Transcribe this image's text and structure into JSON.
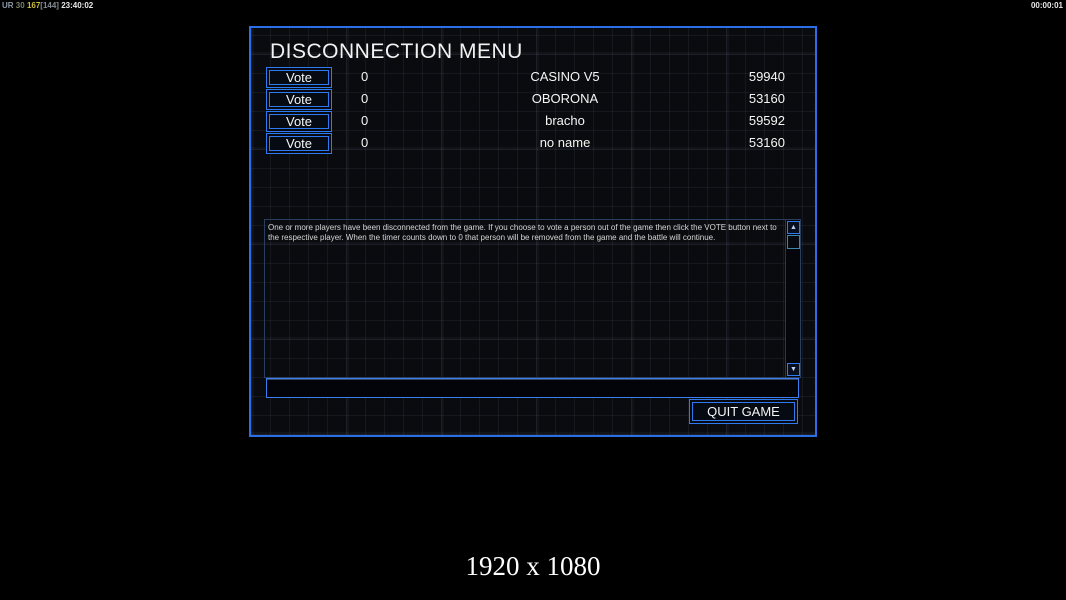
{
  "hud": {
    "top_left": {
      "label_ur": "UR",
      "fps": "30",
      "ping": "167",
      "bracket": "[144]",
      "clock": "23:40:02"
    },
    "top_right_timer": "00:00:01"
  },
  "dialog": {
    "title": "DISCONNECTION MENU",
    "players": [
      {
        "vote_label": "Vote",
        "votes": "0",
        "name": "CASINO V5",
        "score": "59940"
      },
      {
        "vote_label": "Vote",
        "votes": "0",
        "name": "OBORONA",
        "score": "53160"
      },
      {
        "vote_label": "Vote",
        "votes": "0",
        "name": "bracho",
        "score": "59592"
      },
      {
        "vote_label": "Vote",
        "votes": "0",
        "name": "no name",
        "score": "53160"
      }
    ],
    "message": "One or more players have been disconnected from the game.  If you choose to vote a person out of the game then click the VOTE button next to the respective player.  When the timer counts down to 0 that person will be removed from the game and the battle will continue.",
    "chat_input_value": "",
    "quit_button_label": "QUIT GAME",
    "scrollbar": {
      "up_icon": "▲",
      "down_icon": "▼"
    }
  },
  "footer": {
    "resolution": "1920 x 1080"
  },
  "colors": {
    "accent_blue": "#2e7af0",
    "dialog_border": "#2a6ee8",
    "scroll_teal": "#3e86ac",
    "ping_yellow": "#cabd42"
  }
}
